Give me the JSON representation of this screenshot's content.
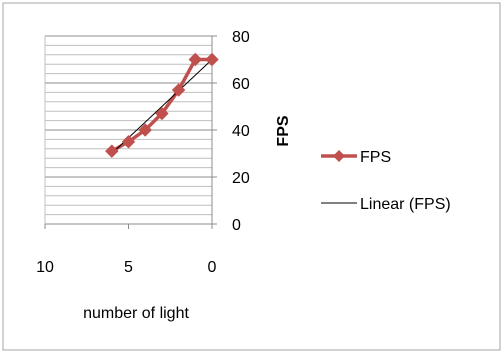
{
  "chart_data": {
    "type": "line",
    "title": "",
    "xlabel": "number of light",
    "ylabel": "FPS",
    "xlim": [
      10,
      0
    ],
    "ylim": [
      0,
      80
    ],
    "x_reversed": true,
    "y_axis_position": "right",
    "x_ticks": [
      "10",
      "5",
      "0"
    ],
    "y_ticks": [
      "0",
      "20",
      "40",
      "60",
      "80"
    ],
    "grid": true,
    "legend_position": "right",
    "series": [
      {
        "name": "FPS",
        "color": "#c0504d",
        "marker": "diamond",
        "x": [
          6,
          5,
          4,
          3,
          2,
          1,
          0
        ],
        "y": [
          31,
          35,
          40,
          47,
          57,
          70,
          70
        ]
      },
      {
        "name": "Linear (FPS)",
        "color": "#000000",
        "style": "trendline",
        "x": [
          6,
          0
        ],
        "y": [
          30,
          70
        ]
      }
    ]
  }
}
